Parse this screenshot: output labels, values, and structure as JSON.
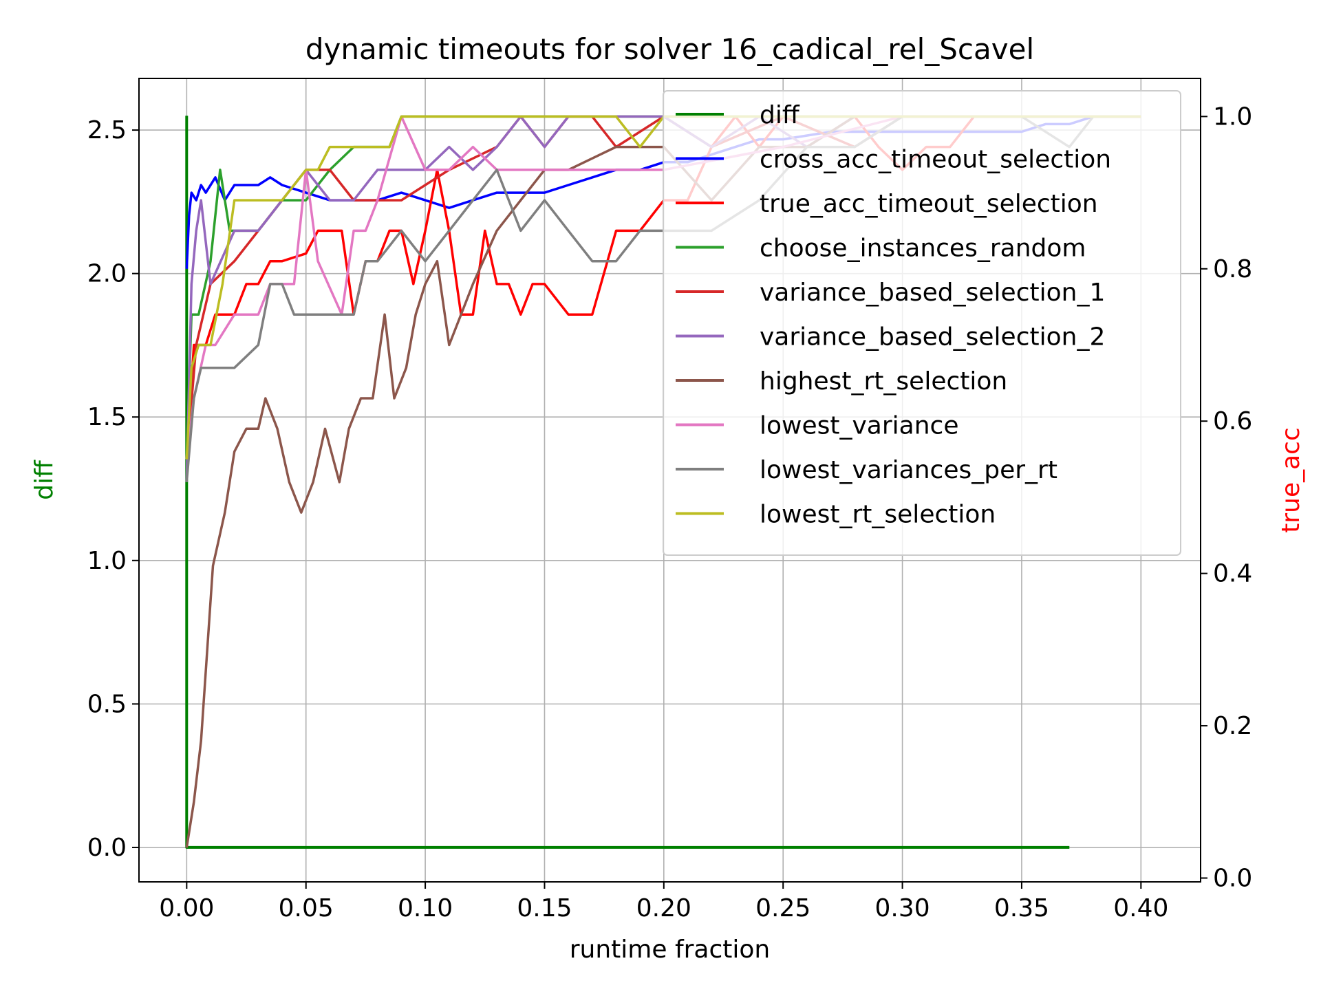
{
  "chart_data": {
    "type": "line",
    "title": "dynamic timeouts for solver 16_cadical_rel_Scavel",
    "xlabel": "runtime fraction",
    "ylabel_left": "diff",
    "ylabel_right": "true_acc",
    "ylabel_left_color": "#008000",
    "ylabel_right_color": "#ff0000",
    "xlim": [
      -0.02,
      0.425
    ],
    "ylim_left": [
      -0.12,
      2.68
    ],
    "ylim_right": [
      -0.005,
      1.05
    ],
    "x_ticks": [
      "0.00",
      "0.05",
      "0.10",
      "0.15",
      "0.20",
      "0.25",
      "0.30",
      "0.35",
      "0.40"
    ],
    "y_left_ticks": [
      "0.0",
      "0.5",
      "1.0",
      "1.5",
      "2.0",
      "2.5"
    ],
    "y_right_ticks": [
      "0.0",
      "0.2",
      "0.4",
      "0.6",
      "0.8",
      "1.0"
    ],
    "grid": true,
    "legend_position": "top-right",
    "series": [
      {
        "name": "diff",
        "color": "#008000",
        "axis": "left",
        "dashed_segments": true,
        "x": [
          0.0,
          0.0,
          0.0,
          0.37
        ],
        "y": [
          2.55,
          1.05,
          0.0,
          0.0
        ]
      },
      {
        "name": "cross_acc_timeout_selection",
        "color": "#0000ff",
        "axis": "right",
        "x": [
          0.0,
          0.001,
          0.002,
          0.004,
          0.006,
          0.008,
          0.012,
          0.016,
          0.02,
          0.025,
          0.03,
          0.035,
          0.04,
          0.05,
          0.06,
          0.07,
          0.08,
          0.09,
          0.1,
          0.11,
          0.12,
          0.13,
          0.14,
          0.15,
          0.16,
          0.17,
          0.18,
          0.19,
          0.2,
          0.21,
          0.22,
          0.23,
          0.24,
          0.25,
          0.27,
          0.3,
          0.33,
          0.35,
          0.36,
          0.37,
          0.38,
          0.4
        ],
        "y": [
          0.8,
          0.87,
          0.9,
          0.89,
          0.91,
          0.9,
          0.92,
          0.89,
          0.91,
          0.91,
          0.91,
          0.92,
          0.91,
          0.9,
          0.89,
          0.89,
          0.89,
          0.9,
          0.89,
          0.88,
          0.89,
          0.9,
          0.9,
          0.9,
          0.91,
          0.92,
          0.93,
          0.93,
          0.94,
          0.94,
          0.95,
          0.96,
          0.97,
          0.97,
          0.98,
          0.98,
          0.98,
          0.98,
          0.99,
          0.99,
          1.0,
          1.0
        ]
      },
      {
        "name": "true_acc_timeout_selection",
        "color": "#ff0000",
        "axis": "right",
        "x": [
          0.0,
          0.003,
          0.008,
          0.012,
          0.02,
          0.025,
          0.03,
          0.035,
          0.04,
          0.05,
          0.055,
          0.06,
          0.065,
          0.07,
          0.075,
          0.08,
          0.085,
          0.09,
          0.095,
          0.1,
          0.105,
          0.11,
          0.115,
          0.12,
          0.125,
          0.13,
          0.135,
          0.14,
          0.145,
          0.15,
          0.16,
          0.17,
          0.18,
          0.19,
          0.2,
          0.21,
          0.22,
          0.23,
          0.24,
          0.25,
          0.26,
          0.27,
          0.28,
          0.29,
          0.3,
          0.31,
          0.32,
          0.33,
          0.35,
          0.4
        ],
        "y": [
          0.55,
          0.7,
          0.7,
          0.74,
          0.74,
          0.78,
          0.78,
          0.81,
          0.81,
          0.82,
          0.85,
          0.85,
          0.85,
          0.74,
          0.81,
          0.81,
          0.85,
          0.85,
          0.78,
          0.85,
          0.93,
          0.85,
          0.74,
          0.74,
          0.85,
          0.78,
          0.78,
          0.74,
          0.78,
          0.78,
          0.74,
          0.74,
          0.85,
          0.85,
          0.89,
          0.89,
          0.96,
          1.0,
          0.96,
          1.0,
          1.0,
          1.0,
          1.0,
          0.96,
          0.93,
          0.96,
          0.96,
          1.0,
          1.0,
          1.0
        ]
      },
      {
        "name": "choose_instances_random",
        "color": "#2ca02c",
        "axis": "right",
        "x": [
          0.0,
          0.002,
          0.005,
          0.01,
          0.014,
          0.018,
          0.022,
          0.03,
          0.04,
          0.05,
          0.06,
          0.07,
          0.075,
          0.08,
          0.085,
          0.09,
          0.1,
          0.15,
          0.2,
          0.25,
          0.3,
          0.35,
          0.4
        ],
        "y": [
          0.55,
          0.74,
          0.74,
          0.81,
          0.93,
          0.85,
          0.85,
          0.85,
          0.89,
          0.89,
          0.93,
          0.96,
          0.96,
          0.96,
          0.96,
          1.0,
          1.0,
          1.0,
          1.0,
          1.0,
          1.0,
          1.0,
          1.0
        ]
      },
      {
        "name": "variance_based_selection_1",
        "color": "#d62728",
        "axis": "right",
        "x": [
          0.0,
          0.004,
          0.01,
          0.02,
          0.03,
          0.04,
          0.05,
          0.06,
          0.07,
          0.09,
          0.11,
          0.13,
          0.14,
          0.15,
          0.16,
          0.17,
          0.18,
          0.2,
          0.22,
          0.25,
          0.28,
          0.3,
          0.33,
          0.35,
          0.4
        ],
        "y": [
          0.55,
          0.7,
          0.78,
          0.81,
          0.85,
          0.89,
          0.93,
          0.93,
          0.89,
          0.89,
          0.93,
          0.96,
          1.0,
          0.96,
          1.0,
          1.0,
          0.96,
          1.0,
          0.96,
          1.0,
          0.96,
          1.0,
          1.0,
          1.0,
          1.0
        ]
      },
      {
        "name": "variance_based_selection_2",
        "color": "#9467bd",
        "axis": "right",
        "x": [
          0.0,
          0.002,
          0.004,
          0.006,
          0.01,
          0.02,
          0.03,
          0.04,
          0.05,
          0.06,
          0.07,
          0.08,
          0.1,
          0.11,
          0.12,
          0.13,
          0.14,
          0.15,
          0.16,
          0.18,
          0.2,
          0.22,
          0.24,
          0.26,
          0.28,
          0.3,
          0.35,
          0.4
        ],
        "y": [
          0.52,
          0.78,
          0.85,
          0.89,
          0.78,
          0.85,
          0.85,
          0.89,
          0.93,
          0.89,
          0.89,
          0.93,
          0.93,
          0.96,
          0.93,
          0.96,
          1.0,
          0.96,
          1.0,
          1.0,
          1.0,
          0.96,
          1.0,
          0.96,
          1.0,
          1.0,
          1.0,
          1.0
        ]
      },
      {
        "name": "highest_rt_selection",
        "color": "#8c564b",
        "axis": "right",
        "x": [
          0.0,
          0.003,
          0.006,
          0.011,
          0.016,
          0.02,
          0.025,
          0.03,
          0.033,
          0.038,
          0.043,
          0.048,
          0.053,
          0.058,
          0.064,
          0.068,
          0.073,
          0.078,
          0.083,
          0.087,
          0.092,
          0.096,
          0.1,
          0.105,
          0.11,
          0.115,
          0.12,
          0.13,
          0.14,
          0.15,
          0.16,
          0.18,
          0.2,
          0.22,
          0.24,
          0.26,
          0.28,
          0.3,
          0.35,
          0.4
        ],
        "y": [
          0.04,
          0.1,
          0.18,
          0.41,
          0.48,
          0.56,
          0.59,
          0.59,
          0.63,
          0.59,
          0.52,
          0.48,
          0.52,
          0.59,
          0.52,
          0.59,
          0.63,
          0.63,
          0.74,
          0.63,
          0.67,
          0.74,
          0.78,
          0.81,
          0.7,
          0.74,
          0.78,
          0.85,
          0.89,
          0.93,
          0.93,
          0.96,
          0.96,
          0.89,
          0.96,
          0.96,
          1.0,
          1.0,
          1.0,
          1.0
        ]
      },
      {
        "name": "lowest_variance",
        "color": "#e377c2",
        "axis": "right",
        "x": [
          0.0,
          0.003,
          0.008,
          0.012,
          0.02,
          0.03,
          0.035,
          0.045,
          0.05,
          0.055,
          0.065,
          0.07,
          0.075,
          0.08,
          0.09,
          0.1,
          0.11,
          0.12,
          0.13,
          0.15,
          0.2,
          0.25,
          0.3,
          0.35,
          0.4
        ],
        "y": [
          0.55,
          0.63,
          0.7,
          0.7,
          0.74,
          0.74,
          0.78,
          0.78,
          0.93,
          0.81,
          0.74,
          0.85,
          0.85,
          0.89,
          1.0,
          0.93,
          0.93,
          0.96,
          0.93,
          0.93,
          0.93,
          0.96,
          1.0,
          1.0,
          1.0
        ]
      },
      {
        "name": "lowest_variances_per_rt",
        "color": "#7f7f7f",
        "axis": "right",
        "x": [
          0.0,
          0.003,
          0.006,
          0.01,
          0.02,
          0.03,
          0.035,
          0.04,
          0.045,
          0.05,
          0.06,
          0.07,
          0.075,
          0.08,
          0.09,
          0.1,
          0.11,
          0.12,
          0.13,
          0.14,
          0.15,
          0.16,
          0.17,
          0.18,
          0.19,
          0.2,
          0.22,
          0.24,
          0.26,
          0.28,
          0.3,
          0.35,
          0.37,
          0.38,
          0.4
        ],
        "y": [
          0.52,
          0.63,
          0.67,
          0.67,
          0.67,
          0.7,
          0.78,
          0.78,
          0.74,
          0.74,
          0.74,
          0.74,
          0.81,
          0.81,
          0.85,
          0.81,
          0.85,
          0.89,
          0.93,
          0.85,
          0.89,
          0.85,
          0.81,
          0.81,
          0.85,
          0.85,
          0.85,
          0.89,
          0.96,
          0.96,
          1.0,
          1.0,
          0.96,
          1.0,
          1.0
        ]
      },
      {
        "name": "lowest_rt_selection",
        "color": "#bcbd22",
        "axis": "right",
        "x": [
          0.0,
          0.002,
          0.005,
          0.01,
          0.015,
          0.02,
          0.03,
          0.04,
          0.05,
          0.055,
          0.06,
          0.07,
          0.08,
          0.085,
          0.09,
          0.1,
          0.12,
          0.15,
          0.18,
          0.19,
          0.2,
          0.25,
          0.3,
          0.35,
          0.4
        ],
        "y": [
          0.55,
          0.67,
          0.7,
          0.7,
          0.78,
          0.89,
          0.89,
          0.89,
          0.93,
          0.93,
          0.96,
          0.96,
          0.96,
          0.96,
          1.0,
          1.0,
          1.0,
          1.0,
          1.0,
          0.96,
          1.0,
          1.0,
          1.0,
          1.0,
          1.0
        ]
      }
    ]
  }
}
